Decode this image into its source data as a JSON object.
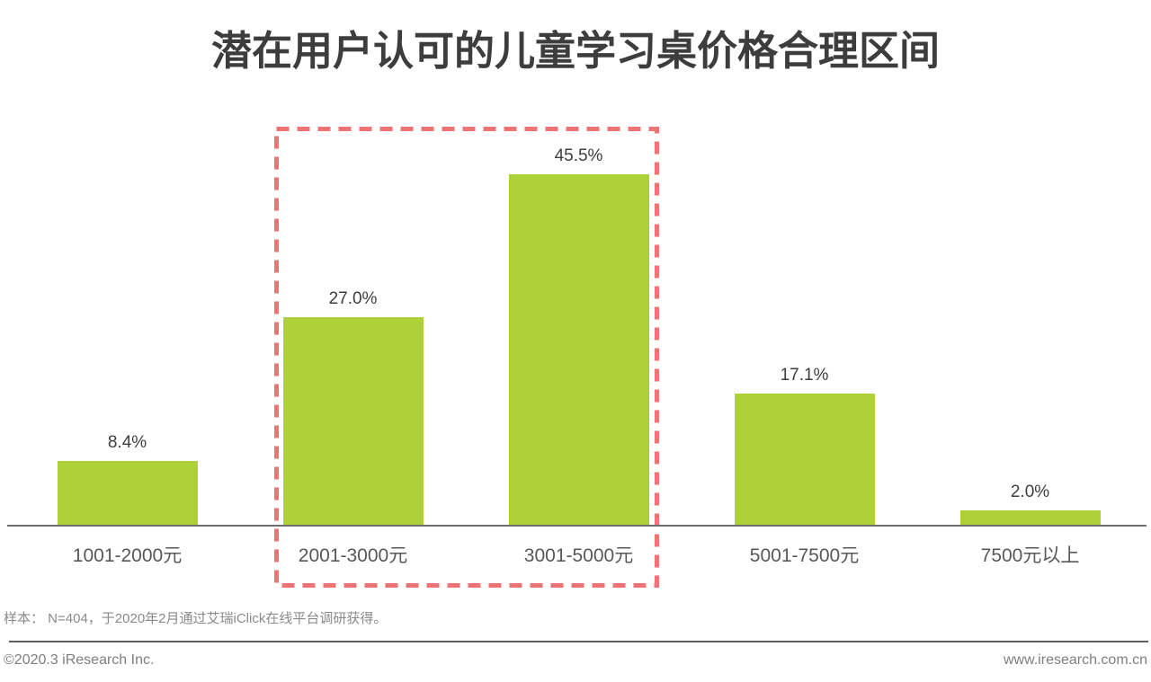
{
  "title": "潜在用户认可的儿童学习桌价格合理区间",
  "chart_data": {
    "type": "bar",
    "title": "潜在用户认可的儿童学习桌价格合理区间",
    "categories": [
      "1001-2000元",
      "2001-3000元",
      "3001-5000元",
      "5001-7500元",
      "7500元以上"
    ],
    "values": [
      8.4,
      27.0,
      45.5,
      17.1,
      2.0
    ],
    "value_labels": [
      "8.4%",
      "27.0%",
      "45.5%",
      "17.1%",
      "2.0%"
    ],
    "ylabel": "",
    "xlabel": "",
    "ylim": [
      0,
      50
    ],
    "grid": false,
    "legend": "none",
    "bar_color": "#aed137",
    "highlight": {
      "style": "dashed-box",
      "color": "#ee7374",
      "categories": [
        "2001-3000元",
        "3001-5000元"
      ],
      "indices": [
        1,
        2
      ]
    }
  },
  "note": "样本：  N=404，于2020年2月通过艾瑞iClick在线平台调研获得。",
  "footer": {
    "left": "©2020.3 iResearch Inc.",
    "right": "www.iresearch.com.cn"
  }
}
